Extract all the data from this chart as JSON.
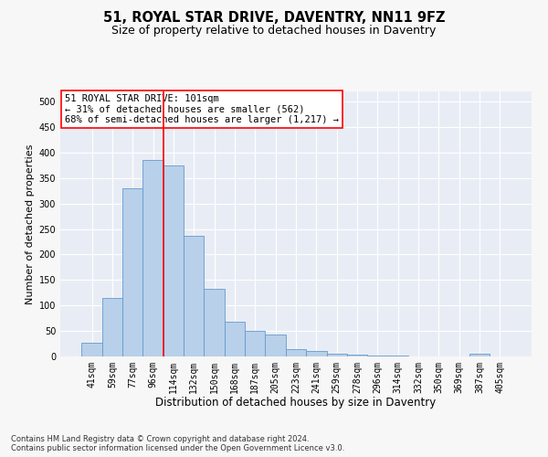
{
  "title1": "51, ROYAL STAR DRIVE, DAVENTRY, NN11 9FZ",
  "title2": "Size of property relative to detached houses in Daventry",
  "xlabel": "Distribution of detached houses by size in Daventry",
  "ylabel": "Number of detached properties",
  "categories": [
    "41sqm",
    "59sqm",
    "77sqm",
    "96sqm",
    "114sqm",
    "132sqm",
    "150sqm",
    "168sqm",
    "187sqm",
    "205sqm",
    "223sqm",
    "241sqm",
    "259sqm",
    "278sqm",
    "296sqm",
    "314sqm",
    "332sqm",
    "350sqm",
    "369sqm",
    "387sqm",
    "405sqm"
  ],
  "values": [
    27,
    115,
    330,
    385,
    375,
    237,
    133,
    68,
    50,
    43,
    15,
    11,
    5,
    3,
    2,
    2,
    0,
    0,
    0,
    6,
    0
  ],
  "bar_color": "#b8d0ea",
  "bar_edge_color": "#6699cc",
  "vline_x": 3.5,
  "vline_color": "red",
  "annotation_line1": "51 ROYAL STAR DRIVE: 101sqm",
  "annotation_line2": "← 31% of detached houses are smaller (562)",
  "annotation_line3": "68% of semi-detached houses are larger (1,217) →",
  "annotation_box_color": "red",
  "footer1": "Contains HM Land Registry data © Crown copyright and database right 2024.",
  "footer2": "Contains public sector information licensed under the Open Government Licence v3.0.",
  "ylim": [
    0,
    520
  ],
  "yticks": [
    0,
    50,
    100,
    150,
    200,
    250,
    300,
    350,
    400,
    450,
    500
  ],
  "fig_bg": "#f7f7f7",
  "axes_bg": "#e8edf5",
  "grid_color": "#ffffff",
  "title1_fontsize": 10.5,
  "title2_fontsize": 9,
  "xlabel_fontsize": 8.5,
  "ylabel_fontsize": 8,
  "tick_fontsize": 7,
  "annotation_fontsize": 7.5,
  "footer_fontsize": 6
}
